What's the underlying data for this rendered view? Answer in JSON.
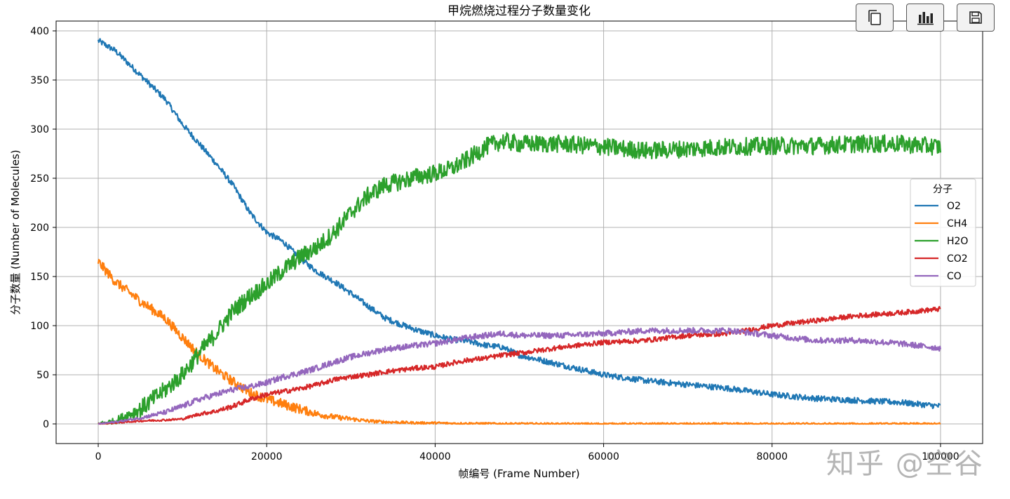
{
  "toolbar": {
    "buttons": [
      {
        "icon": "copy-icon"
      },
      {
        "icon": "bar-chart-icon"
      },
      {
        "icon": "save-icon"
      }
    ]
  },
  "watermark": "知乎 @空谷",
  "chart_data": {
    "type": "line",
    "title": "甲烷燃烧过程分子数量变化",
    "xlabel": "帧编号 (Frame Number)",
    "ylabel": "分子数量 (Number of Molecules)",
    "xlim": [
      -5000,
      105000
    ],
    "ylim": [
      -20,
      410
    ],
    "xticks": [
      0,
      20000,
      40000,
      60000,
      80000,
      100000
    ],
    "xtick_labels": [
      "0",
      "20000",
      "40000",
      "60000",
      "80000",
      "100000"
    ],
    "yticks": [
      0,
      50,
      100,
      150,
      200,
      250,
      300,
      350,
      400
    ],
    "ytick_labels": [
      "0",
      "50",
      "100",
      "150",
      "200",
      "250",
      "300",
      "350",
      "400"
    ],
    "grid": true,
    "legend": {
      "title": "分子",
      "placement": "center-right"
    },
    "x": [
      0,
      2000,
      5000,
      8000,
      10000,
      12000,
      14000,
      16000,
      18000,
      20000,
      22000,
      24000,
      26000,
      28000,
      30000,
      32000,
      34000,
      36000,
      38000,
      40000,
      42000,
      44000,
      46000,
      48000,
      50000,
      55000,
      60000,
      65000,
      70000,
      75000,
      80000,
      85000,
      90000,
      95000,
      100000
    ],
    "series": [
      {
        "name": "O2",
        "color": "#1f77b4",
        "noise": 3,
        "values": [
          390,
          380,
          355,
          330,
          305,
          285,
          265,
          243,
          215,
          195,
          185,
          168,
          155,
          145,
          133,
          120,
          108,
          101,
          95,
          90,
          86,
          84,
          80,
          78,
          70,
          60,
          50,
          44,
          40,
          36,
          30,
          26,
          24,
          22,
          18
        ]
      },
      {
        "name": "CH4",
        "color": "#ff7f0e",
        "noise": 5,
        "values": [
          165,
          145,
          125,
          107,
          88,
          70,
          55,
          43,
          32,
          25,
          20,
          15,
          10,
          7,
          5,
          3,
          2,
          1.5,
          1,
          1,
          0.5,
          0.5,
          0.3,
          0.2,
          0.2,
          0,
          0,
          0,
          0,
          0,
          0,
          0,
          0,
          0,
          0
        ]
      },
      {
        "name": "H2O",
        "color": "#2ca02c",
        "noise": 9,
        "values": [
          0,
          3,
          15,
          35,
          50,
          72,
          92,
          115,
          130,
          142,
          157,
          170,
          180,
          195,
          215,
          232,
          243,
          247,
          252,
          255,
          260,
          270,
          282,
          288,
          285,
          285,
          282,
          278,
          280,
          282,
          283,
          283,
          285,
          285,
          282
        ]
      },
      {
        "name": "CO2",
        "color": "#d62728",
        "noise": 2.5,
        "values": [
          0,
          1,
          3,
          4,
          5,
          10,
          13,
          18,
          25,
          30,
          33,
          36,
          40,
          45,
          48,
          50,
          53,
          55,
          57,
          58,
          62,
          65,
          67,
          70,
          72,
          78,
          83,
          85,
          90,
          92,
          100,
          105,
          110,
          113,
          117
        ]
      },
      {
        "name": "CO",
        "color": "#9467bd",
        "noise": 3,
        "values": [
          0,
          2,
          6,
          12,
          18,
          25,
          30,
          35,
          38,
          42,
          48,
          52,
          57,
          63,
          68,
          72,
          76,
          78,
          80,
          82,
          85,
          88,
          90,
          92,
          90,
          90,
          92,
          95,
          95,
          95,
          90,
          85,
          85,
          82,
          77
        ]
      }
    ]
  }
}
